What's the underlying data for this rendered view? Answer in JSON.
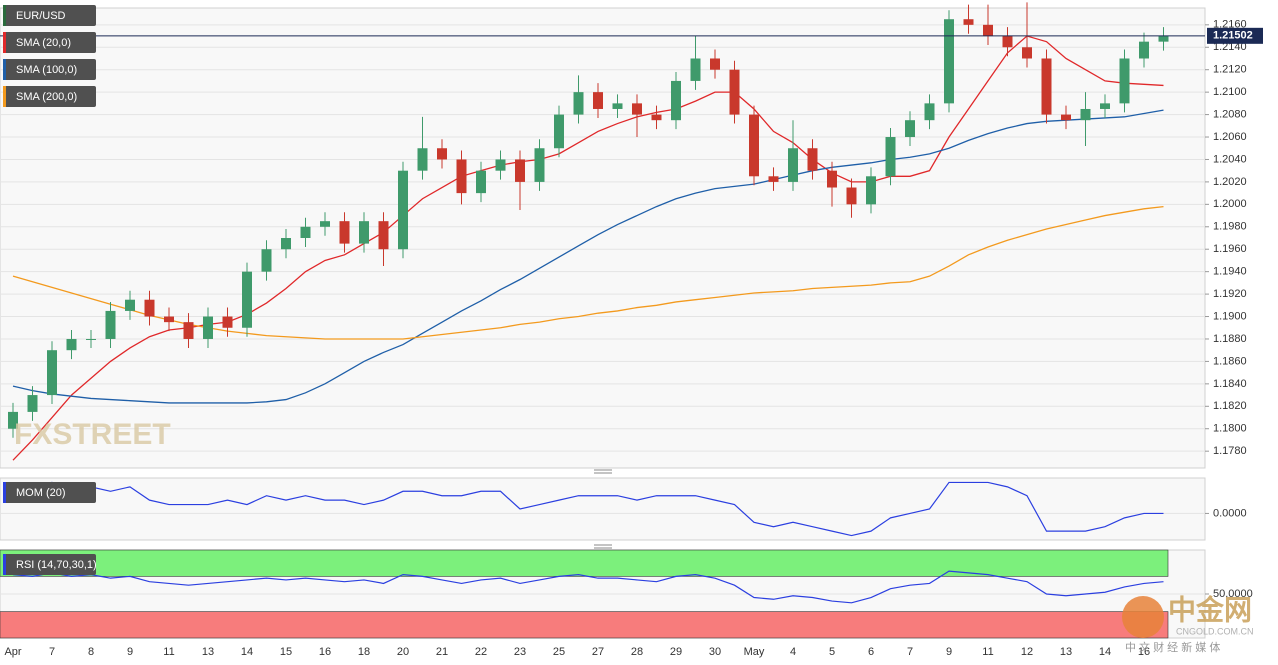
{
  "chart_data": [
    {
      "type": "candlestick",
      "title": "EUR/USD",
      "categories": [
        "Apr",
        null,
        "7",
        null,
        "8",
        null,
        "9",
        null,
        "11",
        null,
        "13",
        null,
        "14",
        null,
        "15",
        null,
        "16",
        null,
        "18",
        null,
        "20",
        null,
        "21",
        null,
        "22",
        null,
        "23",
        null,
        "25",
        null,
        "27",
        null,
        "28",
        null,
        "29",
        null,
        "30",
        null,
        "May",
        null,
        "4",
        null,
        "5",
        null,
        "6",
        null,
        "7",
        null,
        "9",
        null,
        "11",
        null,
        "12",
        null,
        "13",
        null,
        "14",
        null,
        "16",
        null
      ],
      "open": [
        1.18,
        1.1815,
        1.183,
        1.187,
        1.188,
        1.188,
        1.1905,
        1.1915,
        1.19,
        1.1895,
        1.188,
        1.19,
        1.189,
        1.194,
        1.196,
        1.197,
        1.198,
        1.1985,
        1.1965,
        1.1985,
        1.196,
        1.203,
        1.205,
        1.204,
        1.201,
        1.203,
        1.204,
        1.202,
        1.205,
        1.208,
        1.21,
        1.2085,
        1.209,
        1.208,
        1.2075,
        1.211,
        1.213,
        1.212,
        1.208,
        1.2025,
        1.202,
        1.205,
        1.203,
        1.2015,
        1.2,
        1.2025,
        1.206,
        1.2075,
        1.209,
        1.2165,
        1.216,
        1.215,
        1.214,
        1.213,
        1.208,
        1.2075,
        1.2085,
        1.209,
        1.213,
        1.2145
      ],
      "high": [
        1.1823,
        1.1838,
        1.1878,
        1.1888,
        1.1888,
        1.1913,
        1.1923,
        1.1923,
        1.1908,
        1.1903,
        1.1908,
        1.1908,
        1.1948,
        1.1968,
        1.1978,
        1.1988,
        1.1993,
        1.1993,
        1.1993,
        1.1993,
        1.2038,
        1.2078,
        1.2058,
        1.2048,
        1.2038,
        1.2048,
        1.2048,
        1.2058,
        1.2088,
        1.2115,
        1.2108,
        1.2098,
        1.2098,
        1.2088,
        1.2118,
        1.215,
        1.2138,
        1.2128,
        1.2088,
        1.2033,
        1.2075,
        1.2058,
        1.2038,
        1.2023,
        1.2033,
        1.2068,
        1.2083,
        1.2098,
        1.2173,
        1.2178,
        1.2178,
        1.2158,
        1.218,
        1.2138,
        1.2088,
        1.21,
        1.2098,
        1.2138,
        1.2153,
        1.2158
      ],
      "low": [
        1.1792,
        1.1807,
        1.1822,
        1.1862,
        1.1872,
        1.1872,
        1.1897,
        1.1892,
        1.1887,
        1.1872,
        1.1872,
        1.1882,
        1.1882,
        1.1932,
        1.1952,
        1.1962,
        1.1972,
        1.1957,
        1.1957,
        1.1945,
        1.1952,
        1.2022,
        1.2032,
        1.2,
        1.2002,
        1.2022,
        1.1995,
        1.2012,
        1.2042,
        1.2072,
        1.2077,
        1.2077,
        1.206,
        1.2067,
        1.2067,
        1.2102,
        1.2112,
        1.2072,
        1.2017,
        1.2012,
        1.2012,
        1.2022,
        1.1998,
        1.1988,
        1.1992,
        1.2017,
        1.2052,
        1.2067,
        1.2082,
        1.2152,
        1.2142,
        1.2132,
        1.2122,
        1.2072,
        1.2067,
        1.2052,
        1.2077,
        1.2082,
        1.2122,
        1.2137
      ],
      "close": [
        1.1815,
        1.183,
        1.187,
        1.188,
        1.188,
        1.1905,
        1.1915,
        1.19,
        1.1895,
        1.188,
        1.19,
        1.189,
        1.194,
        1.196,
        1.197,
        1.198,
        1.1985,
        1.1965,
        1.1985,
        1.196,
        1.203,
        1.205,
        1.204,
        1.201,
        1.203,
        1.204,
        1.202,
        1.205,
        1.208,
        1.21,
        1.2085,
        1.209,
        1.208,
        1.2075,
        1.211,
        1.213,
        1.212,
        1.208,
        1.2025,
        1.202,
        1.205,
        1.203,
        1.2015,
        1.2,
        1.2025,
        1.206,
        1.2075,
        1.209,
        1.2165,
        1.216,
        1.215,
        1.214,
        1.213,
        1.208,
        1.2075,
        1.2085,
        1.209,
        1.213,
        1.2145,
        1.215
      ],
      "up_color": "#3f9a6b",
      "down_color": "#c9382c",
      "series": [
        {
          "name": "SMA (20,0)",
          "color": "#e0282a",
          "values": [
            1.1772,
            1.179,
            1.181,
            1.183,
            1.1845,
            1.186,
            1.1872,
            1.1882,
            1.1888,
            1.189,
            1.1893,
            1.1895,
            1.1902,
            1.1912,
            1.1925,
            1.194,
            1.195,
            1.1955,
            1.1965,
            1.1975,
            1.199,
            1.2005,
            1.2015,
            1.2025,
            1.203,
            1.2035,
            1.2038,
            1.204,
            1.2045,
            1.2055,
            1.2065,
            1.2072,
            1.2078,
            1.2082,
            1.2085,
            1.2092,
            1.21,
            1.21,
            1.2085,
            1.2065,
            1.2055,
            1.204,
            1.2028,
            1.202,
            1.202,
            1.2025,
            1.2025,
            1.203,
            1.206,
            1.2085,
            1.211,
            1.2135,
            1.215,
            1.2145,
            1.213,
            1.212,
            1.211,
            1.2108,
            1.2107,
            1.2106
          ]
        },
        {
          "name": "SMA (100,0)",
          "color": "#1f5fa8",
          "values": [
            1.1838,
            1.1834,
            1.1831,
            1.1829,
            1.1827,
            1.1826,
            1.1825,
            1.1824,
            1.1823,
            1.1823,
            1.1823,
            1.1823,
            1.1823,
            1.1824,
            1.1826,
            1.1832,
            1.184,
            1.185,
            1.186,
            1.1868,
            1.1875,
            1.1885,
            1.1895,
            1.1905,
            1.1914,
            1.1924,
            1.1933,
            1.1943,
            1.1953,
            1.1963,
            1.1973,
            1.1982,
            1.199,
            1.1998,
            1.2005,
            1.201,
            1.2014,
            1.2016,
            1.2018,
            1.2022,
            1.2026,
            1.203,
            1.2033,
            1.2035,
            1.2037,
            1.204,
            1.2042,
            1.2045,
            1.205,
            1.2057,
            1.2063,
            1.2068,
            1.2072,
            1.2074,
            1.2075,
            1.2076,
            1.2077,
            1.2078,
            1.2081,
            1.2084
          ]
        },
        {
          "name": "SMA (200,0)",
          "color": "#f39a1e",
          "values": [
            1.1936,
            1.1931,
            1.1926,
            1.1921,
            1.1916,
            1.1911,
            1.1906,
            1.1901,
            1.1897,
            1.1893,
            1.189,
            1.1887,
            1.1885,
            1.1883,
            1.1882,
            1.1881,
            1.188,
            1.188,
            1.188,
            1.188,
            1.188,
            1.1882,
            1.1884,
            1.1886,
            1.1888,
            1.189,
            1.1893,
            1.1895,
            1.1898,
            1.19,
            1.1903,
            1.1905,
            1.1908,
            1.191,
            1.1913,
            1.1915,
            1.1917,
            1.1919,
            1.1921,
            1.1922,
            1.1923,
            1.1925,
            1.1926,
            1.1927,
            1.1928,
            1.193,
            1.1931,
            1.1936,
            1.1945,
            1.1955,
            1.1962,
            1.1968,
            1.1973,
            1.1978,
            1.1982,
            1.1986,
            1.199,
            1.1993,
            1.1996,
            1.1998
          ]
        }
      ],
      "last_price": {
        "value": 1.21502,
        "label": "1.21502"
      },
      "ylim": [
        1.1765,
        1.2175
      ],
      "yticks": [
        {
          "value": 1.178,
          "label": "1.1780"
        },
        {
          "value": 1.18,
          "label": "1.1800"
        },
        {
          "value": 1.182,
          "label": "1.1820"
        },
        {
          "value": 1.184,
          "label": "1.1840"
        },
        {
          "value": 1.186,
          "label": "1.1860"
        },
        {
          "value": 1.188,
          "label": "1.1880"
        },
        {
          "value": 1.19,
          "label": "1.1900"
        },
        {
          "value": 1.192,
          "label": "1.1920"
        },
        {
          "value": 1.194,
          "label": "1.1940"
        },
        {
          "value": 1.196,
          "label": "1.1960"
        },
        {
          "value": 1.198,
          "label": "1.1980"
        },
        {
          "value": 1.2,
          "label": "1.2000"
        },
        {
          "value": 1.202,
          "label": "1.2020"
        },
        {
          "value": 1.204,
          "label": "1.2040"
        },
        {
          "value": 1.206,
          "label": "1.2060"
        },
        {
          "value": 1.208,
          "label": "1.2080"
        },
        {
          "value": 1.21,
          "label": "1.2100"
        },
        {
          "value": 1.212,
          "label": "1.2120"
        },
        {
          "value": 1.214,
          "label": "1.2140"
        },
        {
          "value": 1.216,
          "label": "1.2160"
        }
      ],
      "grid": true
    },
    {
      "type": "line",
      "series": [
        {
          "name": "MOM (20)",
          "color": "#2b3fe0",
          "values": [
            0.006,
            0.006,
            0.007,
            0.005,
            0.006,
            0.005,
            0.006,
            0.003,
            0.002,
            0.002,
            0.002,
            0.003,
            0.002,
            0.004,
            0.003,
            0.004,
            0.003,
            0.003,
            0.002,
            0.003,
            0.005,
            0.005,
            0.004,
            0.004,
            0.005,
            0.005,
            0.001,
            0.002,
            0.003,
            0.004,
            0.004,
            0.004,
            0.003,
            0.004,
            0.004,
            0.004,
            0.003,
            0.002,
            -0.002,
            -0.003,
            -0.002,
            -0.003,
            -0.004,
            -0.005,
            -0.004,
            -0.001,
            0.0,
            0.001,
            0.007,
            0.007,
            0.007,
            0.006,
            0.004,
            -0.004,
            -0.004,
            -0.004,
            -0.003,
            -0.001,
            0.0,
            0.0
          ]
        }
      ],
      "ylim": [
        -0.006,
        0.008
      ],
      "yticks": [
        {
          "value": 0,
          "label": "0.0000"
        }
      ],
      "grid": true
    },
    {
      "type": "line",
      "series": [
        {
          "name": "RSI (14,70,30,1)",
          "color": "#2b3fe0",
          "values": [
            72,
            70,
            74,
            70,
            72,
            68,
            70,
            64,
            62,
            60,
            62,
            64,
            66,
            68,
            66,
            68,
            66,
            64,
            66,
            62,
            72,
            70,
            66,
            62,
            66,
            68,
            62,
            66,
            70,
            72,
            68,
            68,
            66,
            64,
            70,
            72,
            68,
            60,
            46,
            44,
            48,
            46,
            42,
            40,
            46,
            56,
            60,
            62,
            76,
            74,
            72,
            68,
            64,
            50,
            48,
            50,
            52,
            58,
            62,
            64
          ]
        }
      ],
      "overbought": 70,
      "oversold": 30,
      "overbought_color": "#7cf07c",
      "oversold_color": "#f77c7c",
      "ylim": [
        0,
        100
      ],
      "yticks": [
        {
          "value": 50,
          "label": "50.0000"
        }
      ],
      "grid": true
    }
  ],
  "watermarks": {
    "brand": "FXSTREET",
    "site_cn": "中金网",
    "site": "CNGOLD.COM.CN",
    "tagline": "中 文 财 经 新 媒 体"
  }
}
